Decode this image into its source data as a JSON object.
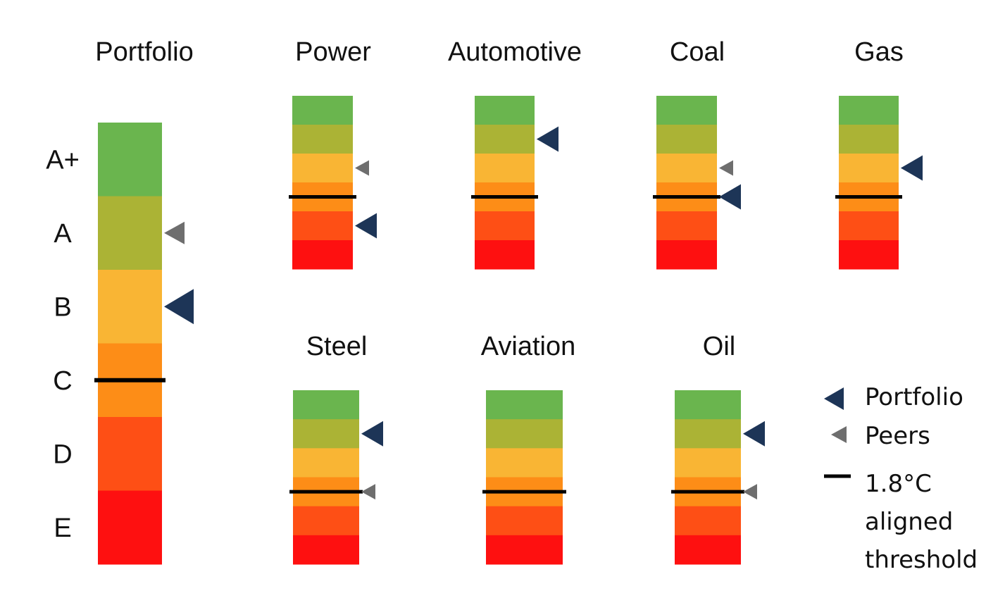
{
  "chart_data": {
    "type": "scorecard",
    "grades": [
      "A+",
      "A",
      "B",
      "C",
      "D",
      "E"
    ],
    "grade_colors": [
      "#6ab54e",
      "#abb335",
      "#f9b534",
      "#fd8d17",
      "#fe4f15",
      "#fe1010"
    ],
    "portfolio_marker_color": "#1d3557",
    "peers_marker_color": "#6e6e6e",
    "threshold_color": "#000000",
    "panels": [
      {
        "title": "Portfolio",
        "portfolio": 2.5,
        "peers": 1.5,
        "threshold": 3.5
      },
      {
        "title": "Power",
        "portfolio": 4.5,
        "peers": 2.5,
        "threshold": 3.5
      },
      {
        "title": "Automotive",
        "portfolio": 1.5,
        "peers": 1.5,
        "threshold": 3.5
      },
      {
        "title": "Coal",
        "portfolio": 3.5,
        "peers": 2.5,
        "threshold": 3.5
      },
      {
        "title": "Gas",
        "portfolio": 2.5,
        "peers": 2.5,
        "threshold": 3.5
      },
      {
        "title": "Steel",
        "portfolio": 1.5,
        "peers": 3.5,
        "threshold": 3.5
      },
      {
        "title": "Aviation",
        "portfolio": null,
        "peers": null,
        "threshold": 3.5
      },
      {
        "title": "Oil",
        "portfolio": 1.5,
        "peers": 3.5,
        "threshold": 3.5
      }
    ],
    "legend": {
      "portfolio": "Portfolio",
      "peers": "Peers",
      "threshold_lines": [
        "1.8°C",
        "aligned",
        "threshold"
      ]
    }
  }
}
